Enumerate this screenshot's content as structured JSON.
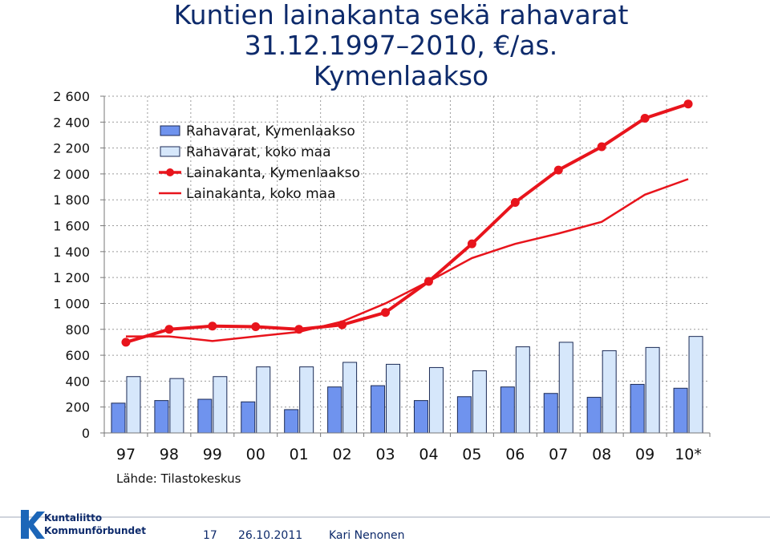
{
  "header": {
    "title_line1": "Kuntien lainakanta sekä rahavarat",
    "title_line2": "31.12.1997–2010, €/as.",
    "title_line3": "Kymenlaakso"
  },
  "source": "Lähde: Tilastokeskus",
  "footer": {
    "logo_line1": "Kuntaliitto",
    "logo_line2": "Kommunförbundet",
    "page": "17",
    "date": "26.10.2011",
    "author": "Kari Nenonen"
  },
  "colors": {
    "bar_kymenlaakso": "#6f93ee",
    "bar_koko_maa": "#d6e7fb",
    "line_color": "#e8141c"
  },
  "chart_data": {
    "type": "bar",
    "categories": [
      "97",
      "98",
      "99",
      "00",
      "01",
      "02",
      "03",
      "04",
      "05",
      "06",
      "07",
      "08",
      "09",
      "10*"
    ],
    "ylim": [
      0,
      2600
    ],
    "yticks": [
      0,
      200,
      400,
      600,
      800,
      1000,
      1200,
      1400,
      1600,
      1800,
      2000,
      2200,
      2400,
      2600
    ],
    "ytick_labels": [
      "0",
      "200",
      "400",
      "600",
      "800",
      "1 000",
      "1 200",
      "1 400",
      "1 600",
      "1 800",
      "2 000",
      "2 200",
      "2 400",
      "2 600"
    ],
    "grid": true,
    "legend_position": "top-left",
    "series": [
      {
        "name": "Rahavarat, Kymenlaakso",
        "type": "bar",
        "values": [
          230,
          250,
          260,
          240,
          180,
          355,
          365,
          250,
          280,
          355,
          305,
          275,
          375,
          345
        ]
      },
      {
        "name": "Rahavarat, koko maa",
        "type": "bar",
        "values": [
          435,
          420,
          435,
          510,
          510,
          545,
          530,
          505,
          480,
          665,
          700,
          635,
          660,
          745
        ]
      },
      {
        "name": "Lainakanta, Kymenlaakso",
        "type": "line-marker",
        "values": [
          700,
          800,
          825,
          820,
          800,
          835,
          930,
          1170,
          1460,
          1780,
          2030,
          2210,
          2430,
          2540
        ]
      },
      {
        "name": "Lainakanta, koko maa",
        "type": "line",
        "values": [
          745,
          745,
          710,
          745,
          780,
          860,
          1000,
          1170,
          1350,
          1460,
          1540,
          1630,
          1840,
          1960
        ]
      }
    ]
  }
}
